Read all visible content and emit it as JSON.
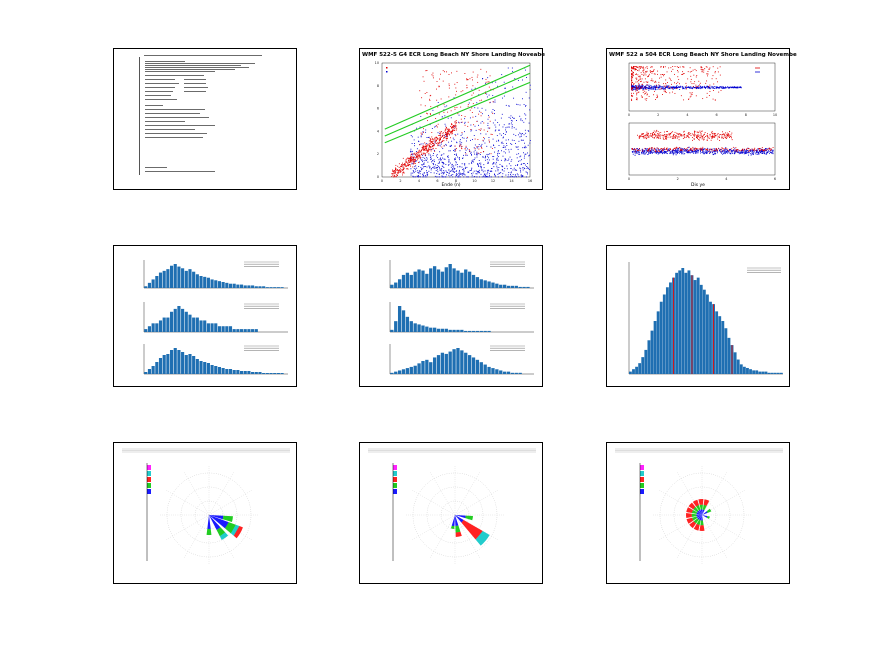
{
  "panels": {
    "p2": {
      "title": "WMF 522-5 G4 ECR Long Beach NY Shore Landing Noveabe",
      "xlabel": "Ende (n)"
    },
    "p3": {
      "title": "WMF 522 a 504 ECR Long Beach NY Shore Landing Novembe",
      "xlabel": "Dis ye"
    },
    "p6": {
      "title": ""
    }
  },
  "chart_data": [
    {
      "type": "table",
      "name": "text-summary"
    },
    {
      "type": "scatter",
      "title": "WMF 522-5 G4 ECR Long Beach NY Shore Landing Noveabe",
      "xlabel": "Ende (n)",
      "xlim": [
        0,
        16
      ],
      "ylim": [
        0,
        10
      ],
      "xticks": [
        0,
        2,
        4,
        6,
        8,
        10,
        12,
        14,
        16
      ],
      "yticks": [
        0,
        2,
        4,
        6,
        8,
        10
      ],
      "colors": {
        "series_a": "#e00000",
        "series_b": "#0000d0",
        "lines": "#22cc22"
      },
      "green_lines": [
        [
          [
            0.3,
            4.2
          ],
          [
            16,
            9.8
          ]
        ],
        [
          [
            0.3,
            3.6
          ],
          [
            16,
            9.1
          ]
        ],
        [
          [
            0.3,
            3.0
          ],
          [
            16,
            8.3
          ]
        ]
      ]
    },
    {
      "type": "scatter",
      "title": "WMF 522 a 504 ECR Long Beach NY Shore Landing Novembe",
      "xlabel": "Dis ye",
      "xticks_top": [
        0,
        2,
        4,
        6,
        8,
        10
      ],
      "xticks_bottom": [
        0,
        2,
        4,
        6
      ]
    },
    {
      "type": "bar",
      "name": "histogram-stack-1",
      "series": [
        {
          "values": [
            2,
            6,
            10,
            14,
            18,
            20,
            22,
            26,
            28,
            25,
            23,
            20,
            22,
            19,
            16,
            14,
            13,
            12,
            10,
            9,
            8,
            7,
            6,
            5,
            5,
            4,
            4,
            3,
            3,
            3,
            2,
            2,
            2,
            1,
            1,
            1,
            1,
            1
          ]
        },
        {
          "values": [
            1,
            2,
            3,
            3,
            4,
            5,
            5,
            7,
            8,
            9,
            8,
            7,
            6,
            5,
            5,
            4,
            4,
            3,
            3,
            3,
            2,
            2,
            2,
            2,
            1,
            1,
            1,
            1,
            1,
            1,
            1,
            0,
            0,
            0,
            0,
            0,
            0,
            0
          ]
        },
        {
          "values": [
            2,
            5,
            8,
            12,
            16,
            19,
            20,
            24,
            26,
            24,
            22,
            19,
            20,
            18,
            15,
            13,
            12,
            11,
            9,
            8,
            7,
            6,
            5,
            5,
            4,
            4,
            3,
            3,
            3,
            2,
            2,
            2,
            1,
            1,
            1,
            1,
            1,
            1
          ]
        }
      ]
    },
    {
      "type": "bar",
      "name": "histogram-stack-2",
      "series": [
        {
          "values": [
            3,
            5,
            8,
            12,
            14,
            12,
            15,
            17,
            16,
            13,
            18,
            20,
            17,
            15,
            19,
            22,
            18,
            16,
            14,
            17,
            15,
            12,
            10,
            8,
            7,
            6,
            5,
            4,
            3,
            3,
            2,
            2,
            2,
            1,
            1,
            1
          ]
        },
        {
          "values": [
            2,
            10,
            24,
            20,
            14,
            10,
            8,
            7,
            6,
            5,
            4,
            4,
            3,
            3,
            3,
            2,
            2,
            2,
            2,
            1,
            1,
            1,
            1,
            1,
            1,
            1,
            0,
            0,
            0,
            0,
            0,
            0,
            0,
            0,
            0,
            0
          ]
        },
        {
          "values": [
            1,
            2,
            3,
            4,
            5,
            6,
            7,
            9,
            11,
            12,
            10,
            14,
            16,
            18,
            17,
            19,
            21,
            22,
            20,
            18,
            16,
            14,
            12,
            10,
            8,
            6,
            5,
            4,
            3,
            2,
            2,
            1,
            1,
            1,
            0,
            0
          ]
        }
      ]
    },
    {
      "type": "bar",
      "name": "histogram-single",
      "colors": {
        "bars": "#1f6fb2",
        "marker": "#e01010"
      },
      "values": [
        2,
        4,
        6,
        9,
        14,
        20,
        28,
        36,
        44,
        52,
        60,
        66,
        72,
        76,
        80,
        84,
        86,
        88,
        84,
        86,
        82,
        78,
        80,
        74,
        70,
        66,
        60,
        58,
        52,
        48,
        44,
        38,
        30,
        24,
        18,
        12,
        8,
        6,
        5,
        4,
        3,
        3,
        2,
        2,
        2,
        1,
        1,
        1,
        1,
        1
      ]
    },
    {
      "type": "pie",
      "name": "rose-1",
      "colors": {
        "a": "#1a1aff",
        "b": "#22cc22",
        "c": "#ff2222",
        "d": "#22cccc",
        "e": "#ff22ff"
      }
    },
    {
      "type": "pie",
      "name": "rose-2"
    },
    {
      "type": "pie",
      "name": "rose-3"
    }
  ]
}
